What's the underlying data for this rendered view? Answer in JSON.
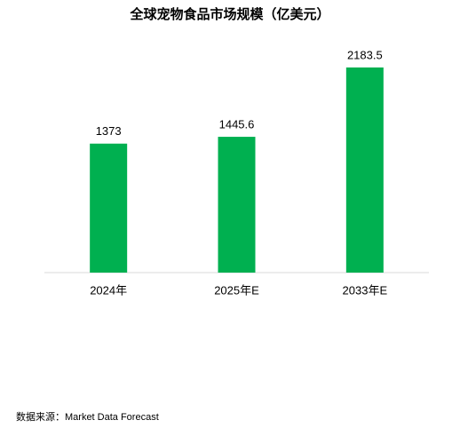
{
  "chart_data": {
    "type": "bar",
    "title": "全球宠物食品市场规模（亿美元）",
    "categories": [
      "2024年",
      "2025年E",
      "2033年E"
    ],
    "values": [
      1373,
      1445.6,
      2183.5
    ],
    "color": "#00b050",
    "source": "数据来源：Market Data Forecast"
  }
}
